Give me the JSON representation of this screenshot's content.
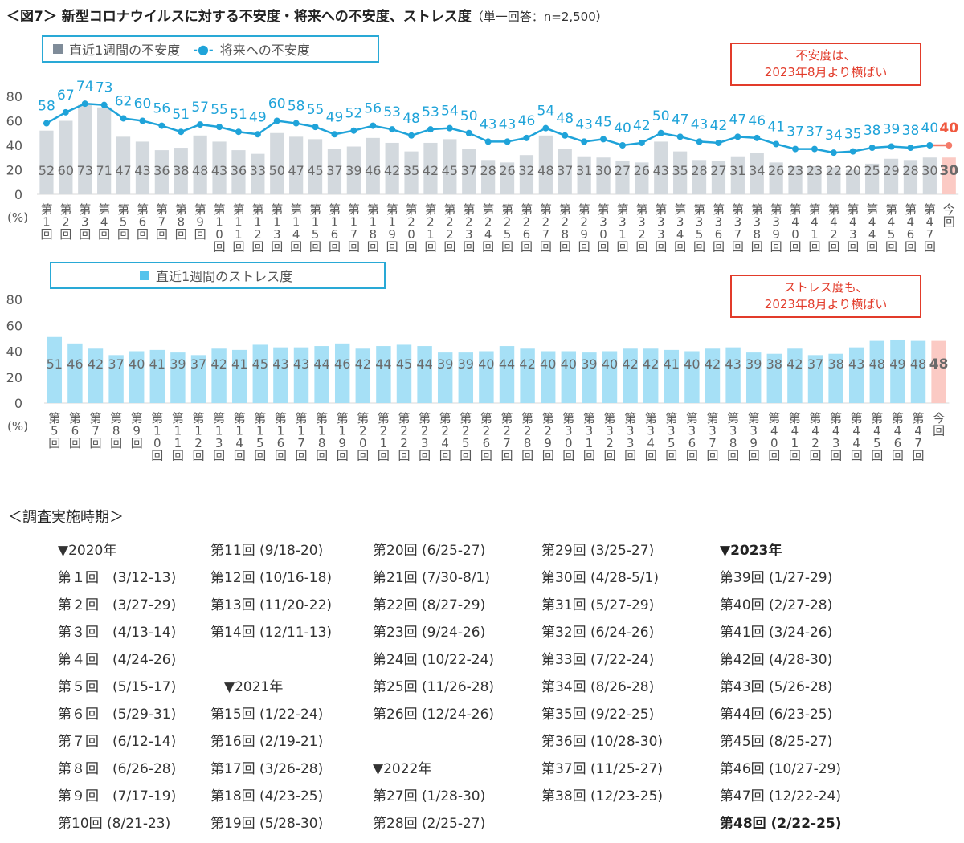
{
  "title": {
    "main": "＜図7＞ 新型コロナウイルスに対する不安度・将来への不安度、ストレス度",
    "sub": "（単一回答：n=2,500）"
  },
  "legend1": {
    "bar_label": "直近1週間の不安度",
    "line_label": "将来への不安度",
    "line_marker": "-●-"
  },
  "legend2": {
    "bar_label": "直近1週間のストレス度"
  },
  "callout1": {
    "line1": "不安度は、",
    "line2": "2023年8月より横ばい"
  },
  "callout2": {
    "line1": "ストレス度も、",
    "line2": "2023年8月より横ばい"
  },
  "colors": {
    "gray_bar": "#d3d9de",
    "blue_bar": "#a6e0f6",
    "highlight_bar": "#fbcac4",
    "line": "#1fa3d9",
    "line_label": "#1fa3d9",
    "highlight_line": "#f47b6a",
    "highlight_label": "#f0583f",
    "bar_label": "#6a6a6a",
    "axis_text": "#595959"
  },
  "chart_data": [
    {
      "type": "bar",
      "title": "直近1週間の不安度 / 将来への不安度",
      "unit_label": "(%)",
      "ylim": [
        0,
        80
      ],
      "yticks": [
        0,
        20,
        40,
        60,
        80
      ],
      "categories": [
        "第1回",
        "第2回",
        "第3回",
        "第4回",
        "第5回",
        "第6回",
        "第7回",
        "第8回",
        "第9回",
        "第10回",
        "第11回",
        "第12回",
        "第13回",
        "第14回",
        "第15回",
        "第16回",
        "第17回",
        "第18回",
        "第19回",
        "第20回",
        "第21回",
        "第22回",
        "第23回",
        "第24回",
        "第25回",
        "第26回",
        "第27回",
        "第28回",
        "第29回",
        "第30回",
        "第31回",
        "第32回",
        "第33回",
        "第34回",
        "第35回",
        "第36回",
        "第37回",
        "第38回",
        "第39回",
        "第40回",
        "第41回",
        "第42回",
        "第43回",
        "第44回",
        "第45回",
        "第46回",
        "第47回",
        "今回"
      ],
      "series": [
        {
          "name": "直近1週間の不安度",
          "kind": "bar",
          "values": [
            52,
            60,
            73,
            71,
            47,
            43,
            36,
            38,
            48,
            43,
            36,
            33,
            50,
            47,
            45,
            37,
            39,
            46,
            42,
            35,
            42,
            45,
            37,
            28,
            26,
            32,
            48,
            37,
            31,
            30,
            27,
            26,
            43,
            35,
            28,
            27,
            31,
            34,
            26,
            23,
            23,
            22,
            20,
            25,
            29,
            28,
            30,
            30
          ]
        },
        {
          "name": "将来への不安度",
          "kind": "line",
          "values": [
            58,
            67,
            74,
            73,
            62,
            60,
            56,
            51,
            57,
            55,
            51,
            49,
            60,
            58,
            55,
            49,
            52,
            56,
            53,
            48,
            53,
            54,
            50,
            43,
            43,
            46,
            54,
            48,
            43,
            45,
            40,
            42,
            50,
            47,
            43,
            42,
            47,
            46,
            41,
            37,
            37,
            34,
            35,
            38,
            39,
            38,
            40,
            40
          ]
        }
      ]
    },
    {
      "type": "bar",
      "title": "直近1週間のストレス度",
      "unit_label": "(%)",
      "ylim": [
        0,
        80
      ],
      "yticks": [
        0,
        20,
        40,
        60,
        80
      ],
      "categories": [
        "第5回",
        "第6回",
        "第7回",
        "第8回",
        "第9回",
        "第10回",
        "第11回",
        "第12回",
        "第13回",
        "第14回",
        "第15回",
        "第16回",
        "第17回",
        "第18回",
        "第19回",
        "第20回",
        "第21回",
        "第22回",
        "第23回",
        "第24回",
        "第25回",
        "第26回",
        "第27回",
        "第28回",
        "第29回",
        "第30回",
        "第31回",
        "第32回",
        "第33回",
        "第34回",
        "第35回",
        "第36回",
        "第37回",
        "第38回",
        "第39回",
        "第40回",
        "第41回",
        "第42回",
        "第43回",
        "第44回",
        "第45回",
        "第46回",
        "第47回",
        "今回"
      ],
      "series": [
        {
          "name": "直近1週間のストレス度",
          "kind": "bar",
          "values": [
            51,
            46,
            42,
            37,
            40,
            41,
            39,
            37,
            42,
            41,
            45,
            43,
            43,
            44,
            46,
            42,
            44,
            45,
            44,
            39,
            39,
            40,
            44,
            42,
            40,
            40,
            39,
            40,
            42,
            42,
            41,
            40,
            42,
            43,
            39,
            38,
            42,
            37,
            38,
            43,
            48,
            49,
            48,
            48
          ]
        }
      ]
    }
  ],
  "schedule": {
    "heading": "＜調査実施時期＞",
    "columns": [
      [
        {
          "t": "▼2020年"
        },
        {
          "t": "第１回　(3/12-13)"
        },
        {
          "t": "第２回　(3/27-29)"
        },
        {
          "t": "第３回　(4/13-14)"
        },
        {
          "t": "第４回　(4/24-26)"
        },
        {
          "t": "第５回　(5/15-17)"
        },
        {
          "t": "第６回　(5/29-31)"
        },
        {
          "t": "第７回　(6/12-14)"
        },
        {
          "t": "第８回　(6/26-28)"
        },
        {
          "t": "第９回　(7/17-19)"
        },
        {
          "t": "第10回 (8/21-23)"
        }
      ],
      [
        {
          "t": "第11回 (9/18-20)"
        },
        {
          "t": "第12回 (10/16-18)"
        },
        {
          "t": "第13回 (11/20-22)"
        },
        {
          "t": "第14回 (12/11-13)"
        },
        {
          "t": ""
        },
        {
          "t": "　▼2021年"
        },
        {
          "t": "第15回 (1/22-24)"
        },
        {
          "t": "第16回 (2/19-21)"
        },
        {
          "t": "第17回 (3/26-28)"
        },
        {
          "t": "第18回 (4/23-25)"
        },
        {
          "t": "第19回 (5/28-30)"
        }
      ],
      [
        {
          "t": "第20回 (6/25-27)"
        },
        {
          "t": "第21回 (7/30-8/1)"
        },
        {
          "t": "第22回 (8/27-29)"
        },
        {
          "t": "第23回 (9/24-26)"
        },
        {
          "t": "第24回 (10/22-24)"
        },
        {
          "t": "第25回 (11/26-28)"
        },
        {
          "t": "第26回 (12/24-26)"
        },
        {
          "t": ""
        },
        {
          "t": "▼2022年"
        },
        {
          "t": "第27回 (1/28-30)"
        },
        {
          "t": "第28回 (2/25-27)"
        }
      ],
      [
        {
          "t": "第29回 (3/25-27)"
        },
        {
          "t": "第30回 (4/28-5/1)"
        },
        {
          "t": "第31回 (5/27-29)"
        },
        {
          "t": "第32回 (6/24-26)"
        },
        {
          "t": "第33回 (7/22-24)"
        },
        {
          "t": "第34回 (8/26-28)"
        },
        {
          "t": "第35回 (9/22-25)"
        },
        {
          "t": "第36回 (10/28-30)"
        },
        {
          "t": "第37回 (11/25-27)"
        },
        {
          "t": "第38回 (12/23-25)"
        },
        {
          "t": ""
        }
      ],
      [
        {
          "t": "▼2023年",
          "b": true
        },
        {
          "t": "第39回 (1/27-29)"
        },
        {
          "t": "第40回 (2/27-28)"
        },
        {
          "t": "第41回 (3/24-26)"
        },
        {
          "t": "第42回 (4/28-30)"
        },
        {
          "t": "第43回 (5/26-28)"
        },
        {
          "t": "第44回 (6/23-25)"
        },
        {
          "t": "第45回 (8/25-27)"
        },
        {
          "t": "第46回 (10/27-29)"
        },
        {
          "t": "第47回 (12/22-24)"
        },
        {
          "t": "第48回 (2/22-25)",
          "b": true
        }
      ]
    ]
  }
}
